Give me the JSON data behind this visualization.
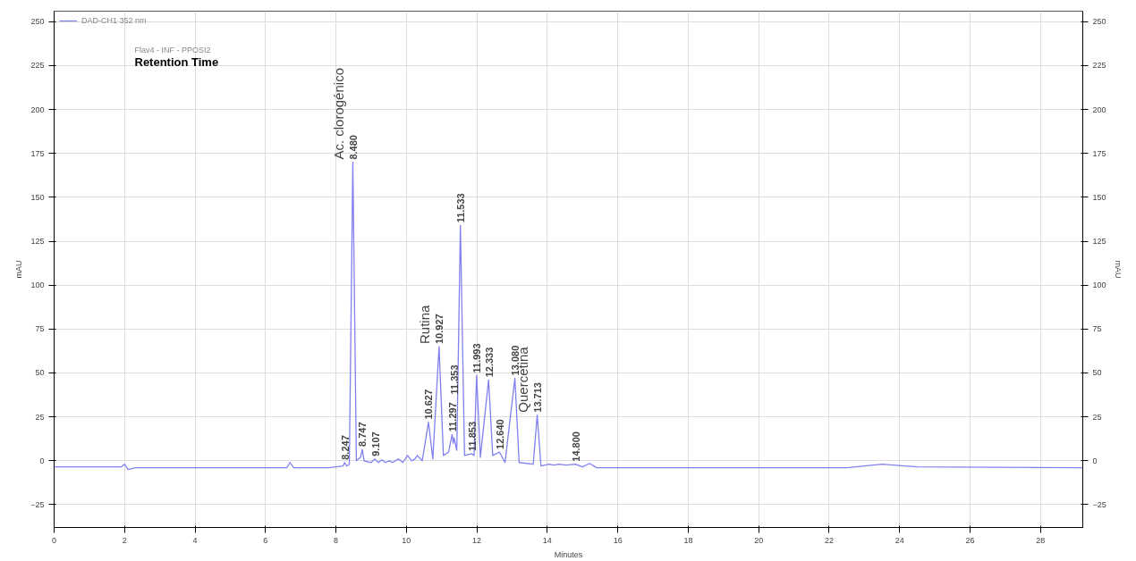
{
  "chart_data": {
    "type": "line",
    "xlabel": "Minutes",
    "ylabel": "mAU",
    "y2label": "mAU",
    "xlim": [
      0,
      29.2
    ],
    "ylim": [
      -38,
      256
    ],
    "y2lim": [
      -38,
      256
    ],
    "xticks": [
      0,
      2,
      4,
      6,
      8,
      10,
      12,
      14,
      16,
      18,
      20,
      22,
      24,
      26,
      28
    ],
    "yticks": [
      -25,
      0,
      25,
      50,
      75,
      100,
      125,
      150,
      175,
      200,
      225,
      250
    ],
    "y2ticks": [
      -25,
      0,
      25,
      50,
      75,
      100,
      125,
      150,
      175,
      200,
      225,
      250
    ],
    "grid": true,
    "legend": "top left",
    "marker": "none",
    "line_style": "solid",
    "series": [
      {
        "name": "DAD-CH1 352 nm",
        "color": "#8080f0",
        "x": [
          0,
          1.9,
          2.0,
          2.1,
          2.3,
          6.6,
          6.7,
          6.8,
          7.8,
          8.2,
          8.247,
          8.3,
          8.38,
          8.48,
          8.58,
          8.7,
          8.747,
          8.8,
          9.0,
          9.107,
          9.2,
          9.307,
          9.4,
          9.52,
          9.6,
          9.773,
          9.9,
          10.033,
          10.15,
          10.243,
          10.307,
          10.45,
          10.627,
          10.75,
          10.927,
          11.05,
          11.2,
          11.297,
          11.33,
          11.353,
          11.43,
          11.533,
          11.65,
          11.853,
          11.92,
          11.993,
          12.1,
          12.333,
          12.45,
          12.64,
          12.8,
          13.08,
          13.2,
          13.6,
          13.713,
          13.82,
          14.047,
          14.18,
          14.333,
          14.533,
          14.8,
          15.0,
          15.2,
          15.4,
          22.5,
          23.5,
          24.5,
          29.2
        ],
        "values": [
          -3.5,
          -3.5,
          -2,
          -5,
          -4,
          -4,
          -1,
          -4,
          -4,
          -3,
          -1,
          -3,
          -2,
          170,
          0,
          2,
          6.5,
          0,
          -1,
          1,
          -1,
          0.5,
          -1,
          0,
          -1,
          1,
          -1,
          3,
          0,
          1,
          3,
          0,
          22,
          1,
          65,
          3,
          5,
          15,
          10,
          13,
          6,
          134,
          3,
          4,
          3,
          48.5,
          2,
          46,
          3,
          5,
          -1,
          47,
          -1,
          -2,
          26,
          -3,
          -2,
          -2.5,
          -2,
          -2.5,
          -2,
          -3.5,
          -1.5,
          -4,
          -4,
          -2,
          -3.5,
          -4
        ]
      }
    ],
    "annotations": [
      "Flav4 - INF - PPOSI2",
      "Retention Time",
      {
        "text": "8.247",
        "x": 8.247,
        "y": -1
      },
      {
        "text": "8.480",
        "x": 8.48,
        "y": 170
      },
      {
        "text": "Ac. clorogénico",
        "x": 8.48,
        "y": 170
      },
      {
        "text": "8.747",
        "x": 8.747,
        "y": 6.5
      },
      {
        "text": "9.107",
        "x": 9.107,
        "y": 1
      },
      {
        "text": "10.627",
        "x": 10.627,
        "y": 22
      },
      {
        "text": "10.927",
        "x": 10.927,
        "y": 65
      },
      {
        "text": "Rutina",
        "x": 10.927,
        "y": 65
      },
      {
        "text": "11.297",
        "x": 11.297,
        "y": 15
      },
      {
        "text": "11.353",
        "x": 11.353,
        "y": 28
      },
      {
        "text": "11.533",
        "x": 11.533,
        "y": 134
      },
      {
        "text": "11.853",
        "x": 11.853,
        "y": 4
      },
      {
        "text": "11.993",
        "x": 11.993,
        "y": 48.5
      },
      {
        "text": "12.333",
        "x": 12.333,
        "y": 46
      },
      {
        "text": "12.640",
        "x": 12.64,
        "y": 5
      },
      {
        "text": "13.080",
        "x": 13.08,
        "y": 47
      },
      {
        "text": "13.713",
        "x": 13.713,
        "y": 26
      },
      {
        "text": "Quercetina",
        "x": 13.713,
        "y": 26
      },
      {
        "text": "14.800",
        "x": 14.8,
        "y": -2
      }
    ]
  }
}
